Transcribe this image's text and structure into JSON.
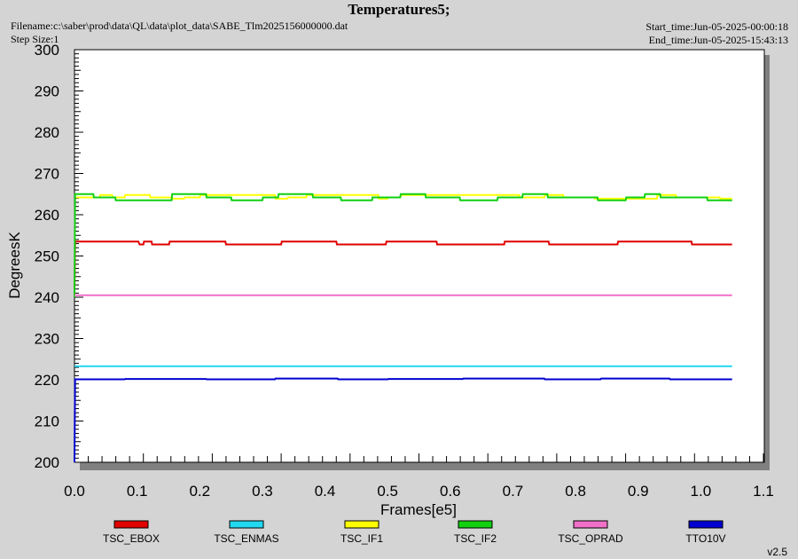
{
  "header": {
    "title": "Temperatures5;",
    "filename": "Filename:c:\\saber\\prod\\data\\QL\\data\\plot_data\\SABE_Tlm2025156000000.dat",
    "step_size": "Step Size:1",
    "start_time": "Start_time:Jun-05-2025-00:00:18",
    "end_time": "End_time:Jun-05-2025-15:43:13"
  },
  "footer": {
    "version": "v2.5"
  },
  "chart_data": {
    "type": "line",
    "title": "Temperatures5;",
    "xlabel": "Frames[e5]",
    "ylabel": "DegreesK",
    "xlim": [
      0,
      1.1
    ],
    "ylim": [
      200,
      300
    ],
    "x_ticks": [
      "0.0",
      "0.1",
      "0.2",
      "0.3",
      "0.4",
      "0.5",
      "0.6",
      "0.7",
      "0.8",
      "0.9",
      "1.0",
      "1.1"
    ],
    "y_ticks": [
      "200",
      "210",
      "220",
      "230",
      "240",
      "250",
      "260",
      "270",
      "280",
      "290",
      "300"
    ],
    "grid": false,
    "legend_position": "bottom",
    "series": [
      {
        "name": "TSC_EBOX",
        "color": "#e00000",
        "x": [
          0.0,
          0.001,
          0.035,
          0.036,
          0.102,
          0.104,
          0.11,
          0.111,
          0.123,
          0.124,
          0.151,
          0.152,
          0.166,
          0.167,
          0.241,
          0.242,
          0.26,
          0.261,
          0.33,
          0.331,
          0.345,
          0.346,
          0.418,
          0.419,
          0.432,
          0.433,
          0.497,
          0.498,
          0.509,
          0.51,
          0.578,
          0.579,
          0.613,
          0.614,
          0.686,
          0.687,
          0.757,
          0.758,
          0.79,
          0.791,
          0.867,
          0.868,
          0.945,
          0.946,
          0.985,
          0.986,
          1.05
        ],
        "y": [
          240,
          253.5,
          253.5,
          253.5,
          253.5,
          252.8,
          252.8,
          253.5,
          253.5,
          252.8,
          252.8,
          253.5,
          253.5,
          253.5,
          253.5,
          252.8,
          252.8,
          252.8,
          252.8,
          253.5,
          253.5,
          253.5,
          253.5,
          252.8,
          252.8,
          252.8,
          252.8,
          253.5,
          253.5,
          253.5,
          253.5,
          252.8,
          252.8,
          252.8,
          252.8,
          253.5,
          253.5,
          252.8,
          252.8,
          252.8,
          252.8,
          253.5,
          253.5,
          253.5,
          253.5,
          252.8,
          252.8
        ]
      },
      {
        "name": "TSC_ENMAS",
        "color": "#20d8f0",
        "x": [
          0.0,
          1.05
        ],
        "y": [
          223.3,
          223.3
        ]
      },
      {
        "name": "TSC_IF1",
        "color": "#ffff00",
        "x": [
          0.003,
          0.04,
          0.041,
          0.06,
          0.061,
          0.08,
          0.081,
          0.12,
          0.121,
          0.155,
          0.156,
          0.175,
          0.176,
          0.2,
          0.201,
          0.32,
          0.321,
          0.34,
          0.341,
          0.37,
          0.371,
          0.485,
          0.486,
          0.5,
          0.501,
          0.52,
          0.521,
          0.71,
          0.711,
          0.75,
          0.751,
          0.78,
          0.781,
          0.83,
          0.831,
          0.93,
          0.931,
          0.96,
          0.961,
          1.03,
          1.031,
          1.05
        ],
        "y": [
          264.2,
          264.2,
          264.8,
          264.8,
          264.2,
          264.2,
          264.8,
          264.8,
          264.2,
          264.2,
          263.9,
          263.9,
          264.2,
          264.2,
          264.8,
          264.8,
          263.9,
          263.9,
          264.2,
          264.2,
          264.8,
          264.8,
          263.9,
          263.9,
          264.2,
          264.2,
          264.8,
          264.8,
          264.2,
          264.2,
          264.8,
          264.8,
          264.2,
          264.2,
          263.9,
          263.9,
          264.8,
          264.8,
          264.2,
          264.2,
          263.9,
          263.9
        ]
      },
      {
        "name": "TSC_IF2",
        "color": "#10d010",
        "x": [
          0.0,
          0.001,
          0.03,
          0.031,
          0.065,
          0.066,
          0.155,
          0.156,
          0.21,
          0.211,
          0.25,
          0.251,
          0.3,
          0.301,
          0.325,
          0.326,
          0.38,
          0.381,
          0.425,
          0.426,
          0.475,
          0.476,
          0.52,
          0.521,
          0.56,
          0.561,
          0.615,
          0.616,
          0.675,
          0.676,
          0.715,
          0.716,
          0.755,
          0.756,
          0.835,
          0.836,
          0.88,
          0.881,
          0.91,
          0.911,
          0.935,
          0.936,
          1.01,
          1.011,
          1.05
        ],
        "y": [
          240,
          265.0,
          265.0,
          264.2,
          264.2,
          263.5,
          263.5,
          265.0,
          265.0,
          264.2,
          264.2,
          263.5,
          263.5,
          264.2,
          264.2,
          265.0,
          265.0,
          264.2,
          264.2,
          263.5,
          263.5,
          264.2,
          264.2,
          265.0,
          265.0,
          264.2,
          264.2,
          263.5,
          263.5,
          264.2,
          264.2,
          265.0,
          265.0,
          264.2,
          264.2,
          263.5,
          263.5,
          264.2,
          264.2,
          265.0,
          265.0,
          264.2,
          264.2,
          263.5,
          263.5
        ]
      },
      {
        "name": "TSC_OPRAD",
        "color": "#f070c8",
        "x": [
          0.0,
          1.05
        ],
        "y": [
          240.5,
          240.5
        ]
      },
      {
        "name": "TTO10V",
        "color": "#0000d0",
        "x": [
          0.0,
          0.001,
          0.08,
          0.081,
          0.21,
          0.211,
          0.32,
          0.321,
          0.42,
          0.421,
          0.5,
          0.501,
          0.62,
          0.621,
          0.75,
          0.751,
          0.84,
          0.841,
          0.95,
          0.951,
          1.05
        ],
        "y": [
          200,
          220.1,
          220.1,
          220.2,
          220.2,
          220.1,
          220.1,
          220.3,
          220.3,
          220.1,
          220.1,
          220.2,
          220.2,
          220.3,
          220.3,
          220.1,
          220.1,
          220.3,
          220.3,
          220.1,
          220.1
        ]
      }
    ]
  }
}
